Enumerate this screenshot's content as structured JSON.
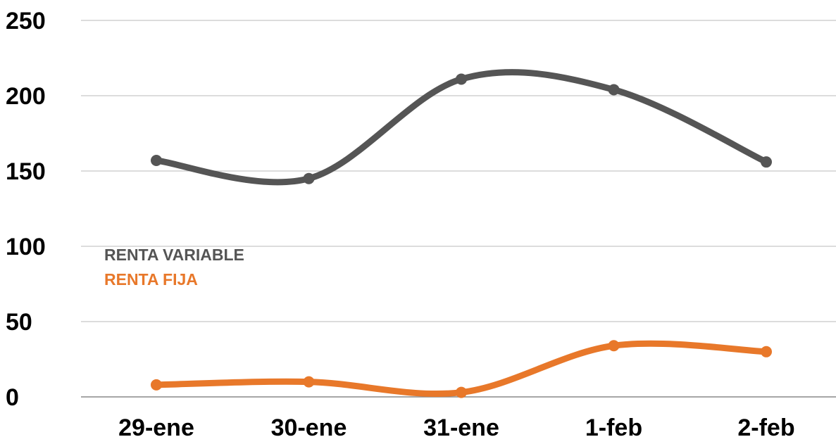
{
  "chart_data": {
    "type": "line",
    "smooth": true,
    "categories": [
      "29-ene",
      "30-ene",
      "31-ene",
      "1-feb",
      "2-feb"
    ],
    "series": [
      {
        "name": "RENTA VARIABLE",
        "color": "#555555",
        "values": [
          157,
          145,
          211,
          204,
          156
        ]
      },
      {
        "name": "RENTA FIJA",
        "color": "#E8782A",
        "values": [
          8,
          10,
          3,
          34,
          30
        ]
      }
    ],
    "ylim": [
      0,
      250
    ],
    "yticks": [
      "0",
      "50",
      "100",
      "150",
      "200",
      "250"
    ],
    "grid": true,
    "legend_position": "center-left",
    "title": "",
    "xlabel": "",
    "ylabel": ""
  }
}
